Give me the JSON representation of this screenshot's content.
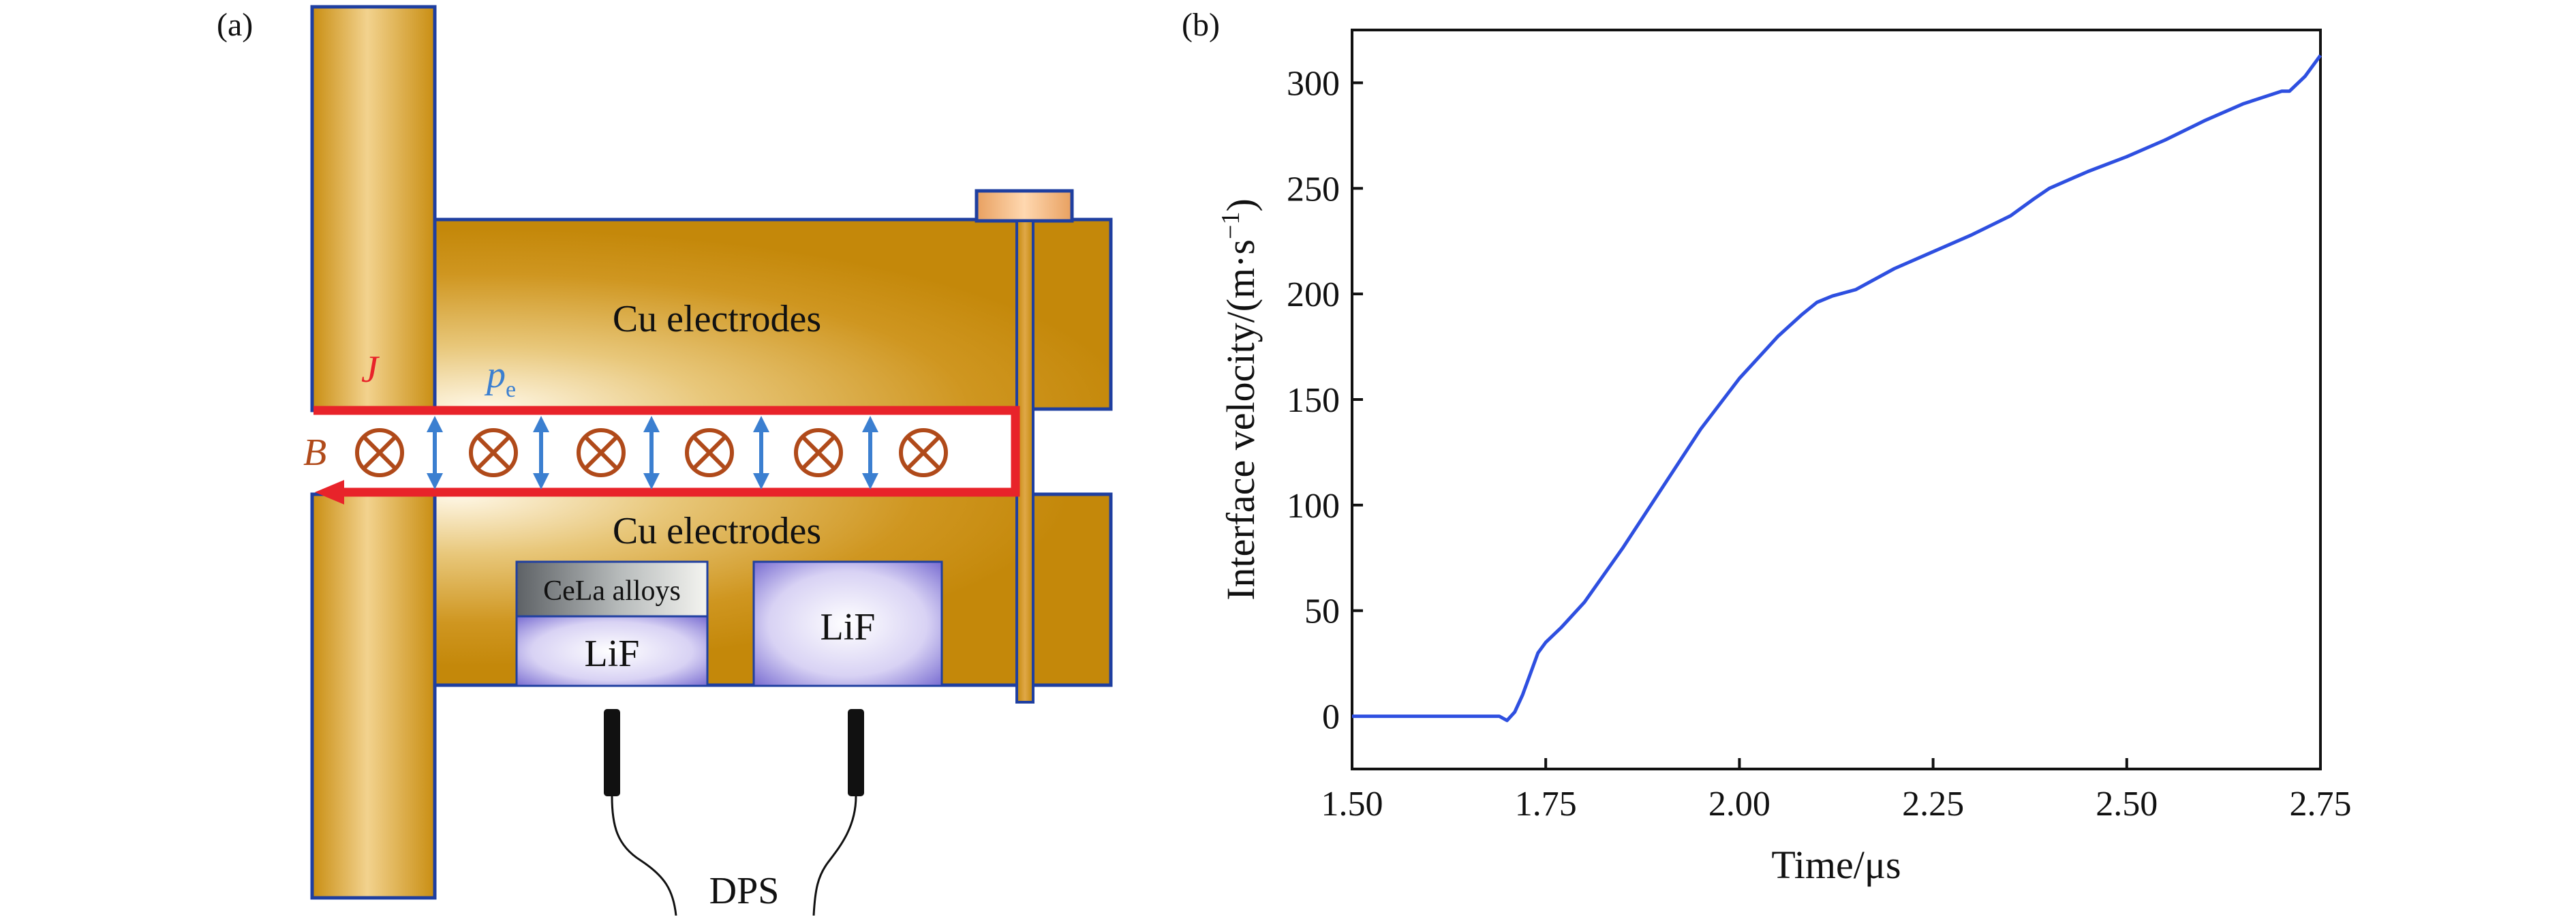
{
  "panel_a": {
    "label": "(a)",
    "electrode_top_label": "Cu electrodes",
    "electrode_bottom_label": "Cu electrodes",
    "current_symbol": "J",
    "pressure_symbol": "p",
    "pressure_subscript": "e",
    "field_symbol": "B",
    "sample_top_label": "CeLa alloys",
    "window_label_1": "LiF",
    "window_label_2": "LiF",
    "probe_label": "DPS",
    "colors": {
      "electrode": "#C8900A",
      "outline": "#1F3FA0",
      "current": "#E8232A",
      "field": "#B04A1A",
      "pressure": "#3B7FD0",
      "lif": "#8A7FD8",
      "cela": "#6E7276"
    }
  },
  "chart_data": {
    "type": "line",
    "panel_label": "(b)",
    "xlabel": "Time/μs",
    "ylabel_main": "Interface velocity/(m·s",
    "ylabel_exp": "−1",
    "ylabel_close": ")",
    "xlim": [
      1.5,
      2.75
    ],
    "ylim": [
      -25,
      325
    ],
    "xticks": [
      1.5,
      1.75,
      2.0,
      2.25,
      2.5,
      2.75
    ],
    "xtick_labels": [
      "1.50",
      "1.75",
      "2.00",
      "2.25",
      "2.50",
      "2.75"
    ],
    "yticks": [
      0,
      50,
      100,
      150,
      200,
      250,
      300
    ],
    "ytick_labels": [
      "0",
      "50",
      "100",
      "150",
      "200",
      "250",
      "300"
    ],
    "grid": false,
    "line_color": "#2E4FE0",
    "series": [
      {
        "x": [
          1.5,
          1.55,
          1.6,
          1.65,
          1.69,
          1.7,
          1.71,
          1.72,
          1.73,
          1.74,
          1.75,
          1.77,
          1.8,
          1.85,
          1.9,
          1.95,
          2.0,
          2.05,
          2.08,
          2.1,
          2.12,
          2.15,
          2.2,
          2.25,
          2.3,
          2.35,
          2.38,
          2.4,
          2.45,
          2.5,
          2.55,
          2.6,
          2.65,
          2.7,
          2.71,
          2.73,
          2.75
        ],
        "y": [
          0,
          0,
          0,
          0,
          0,
          -2,
          2,
          10,
          20,
          30,
          35,
          42,
          54,
          80,
          108,
          136,
          160,
          180,
          190,
          196,
          199,
          202,
          212,
          220,
          228,
          237,
          245,
          250,
          258,
          265,
          273,
          282,
          290,
          296,
          296,
          303,
          313
        ]
      }
    ]
  }
}
